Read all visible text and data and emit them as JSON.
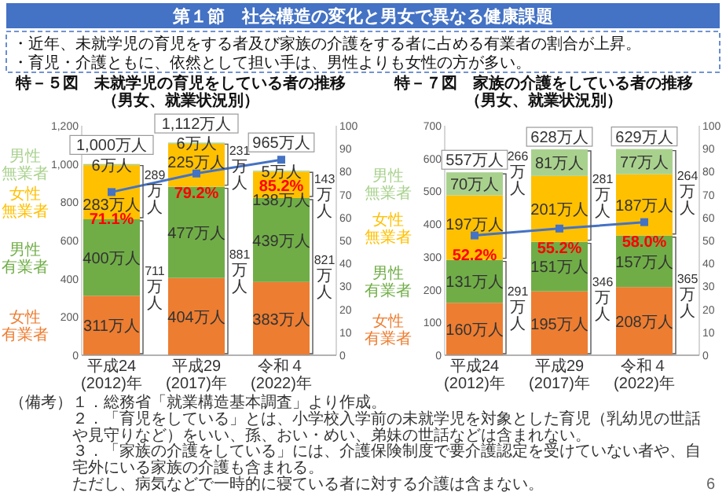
{
  "chart_data": [
    {
      "type": "other",
      "title": "第１節　社会構造の変化と男女で異なる健康課題",
      "annotations": [
        "・近年、未就学児の育児をする者及び家族の介護をする者に占める有業者の割合が上昇。",
        "・育児・介護ともに、依然として担い手は、男性よりも女性の方が多い。",
        "（備考）１．総務省「就業構造基本調査」より作成。",
        "２．「育児をしている」とは、小学校入学前の未就学児を対象とした育児（乳幼児の世話や見守りなど）をいい、孫、おい・めい、弟妹の世話などは含まれない。",
        "３．「家族の介護をしている」には、介護保険制度で要介護認定を受けていない者や、自宅外にいる家族の介護も含まれる。",
        "ただし、病気などで一時的に寝ている者に対する介護は含まない。",
        "6"
      ]
    },
    {
      "type": "bar",
      "stacked": true,
      "title": "特－５図　未就学児の育児をしている者の推移",
      "subtitle": "（男女、就業状況別）",
      "categories": [
        "平成24(2012)年",
        "平成29(2017)年",
        "令和４(2022)年"
      ],
      "marker": "square",
      "series": [
        {
          "name": "女性有業者",
          "color": "#ed7d31",
          "values": [
            311,
            404,
            383
          ],
          "value_labels": [
            "311万人",
            "404万人",
            "383万人"
          ]
        },
        {
          "name": "男性有業者",
          "color": "#70ad47",
          "values": [
            400,
            477,
            439
          ],
          "value_labels": [
            "400万人",
            "477万人",
            "439万人"
          ]
        },
        {
          "name": "女性無業者",
          "color": "#ffc000",
          "values": [
            283,
            225,
            138
          ],
          "value_labels": [
            "283万人",
            "225万人",
            "138万人"
          ]
        },
        {
          "name": "男性無業者",
          "color": "#a9d18e",
          "values": [
            6,
            6,
            5
          ],
          "value_labels": [
            "6万人",
            "6万人",
            "5万人"
          ]
        },
        {
          "type": "line",
          "axis": "y2",
          "color": "#4472c4",
          "values": [
            71.1,
            79.2,
            85.2
          ],
          "value_labels": [
            "71.1%",
            "79.2%",
            "85.2%"
          ]
        }
      ],
      "totals": [
        "1,000万人",
        "1,112万人",
        "965万人"
      ],
      "ylim": [
        0,
        1200
      ],
      "yticks": [
        0,
        200,
        400,
        600,
        800,
        {
          "value": 1000,
          "label": "1,000"
        },
        {
          "value": 1200,
          "label": "1,200"
        }
      ],
      "y2lim": [
        0,
        100
      ],
      "y2ticks": [
        0,
        10,
        20,
        30,
        40,
        50,
        60,
        70,
        80,
        90,
        100
      ],
      "annotations": [
        "711万人",
        {
          "text": "289万人",
          "x": "平成24(2012)年",
          "y": 1000
        },
        "881万人",
        {
          "text": "231万人",
          "x": "平成29(2017)年",
          "y": 1112
        },
        "821万人",
        {
          "text": "143万人",
          "x": "令和４(2022)年",
          "y": 965
        }
      ]
    },
    {
      "type": "bar",
      "stacked": true,
      "title": "特－７図　家族の介護をしている者の推移",
      "subtitle": "（男女、就業状況別）",
      "categories": [
        "平成24(2012)年",
        "平成29(2017)年",
        "令和４(2022)年"
      ],
      "marker": "square",
      "series": [
        {
          "name": "女性有業者",
          "color": "#ed7d31",
          "values": [
            160,
            195,
            208
          ],
          "value_labels": [
            "160万人",
            "195万人",
            "208万人"
          ]
        },
        {
          "name": "男性有業者",
          "color": "#70ad47",
          "values": [
            131,
            151,
            157
          ],
          "value_labels": [
            "131万人",
            "151万人",
            "157万人"
          ]
        },
        {
          "name": "女性無業者",
          "color": "#ffc000",
          "values": [
            197,
            201,
            187
          ],
          "value_labels": [
            "197万人",
            "201万人",
            "187万人"
          ]
        },
        {
          "name": "男性無業者",
          "color": "#a9d18e",
          "values": [
            70,
            81,
            77
          ],
          "value_labels": [
            "70万人",
            "81万人",
            "77万人"
          ]
        },
        {
          "type": "line",
          "axis": "y2",
          "color": "#4472c4",
          "values": [
            52.2,
            55.2,
            58.0
          ],
          "value_labels": [
            "52.2%",
            "55.2%",
            "58.0%"
          ]
        }
      ],
      "totals": [
        "557万人",
        "628万人",
        "629万人"
      ],
      "ylim": [
        0,
        700
      ],
      "yticks": [
        0,
        100,
        200,
        300,
        400,
        500,
        600,
        700
      ],
      "y2lim": [
        0,
        100
      ],
      "y2ticks": [
        0,
        10,
        20,
        30,
        40,
        50,
        60,
        70,
        80,
        90,
        100
      ],
      "annotations": [
        "291万人",
        {
          "text": "266万人",
          "x": "平成24(2012)年",
          "y": 557
        },
        "346万人",
        {
          "text": "281万人",
          "x": "平成29(2017)年",
          "y": 628
        },
        "365万人",
        {
          "text": "264万人",
          "x": "令和４(2022)年",
          "y": 629
        }
      ]
    }
  ]
}
